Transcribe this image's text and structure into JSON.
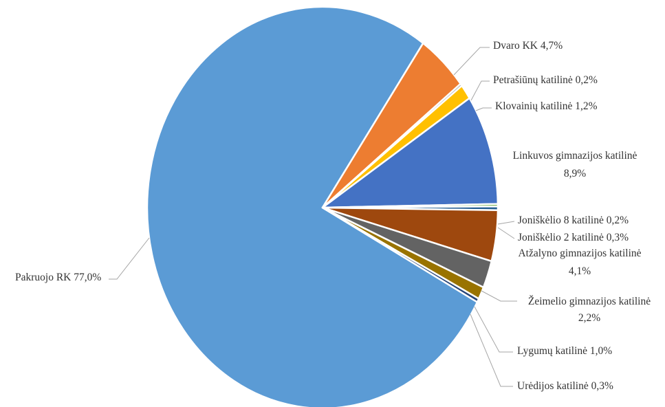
{
  "chart_data": {
    "type": "pie",
    "title": "",
    "label_format": "{name} {value}%",
    "decimal_separator": ",",
    "slices": [
      {
        "name": "Pakruojo RK",
        "value": 77.0,
        "color": "#5b9bd5"
      },
      {
        "name": "Dvaro KK",
        "value": 4.7,
        "color": "#ed7d31"
      },
      {
        "name": "Petrašiūnų katilinė",
        "value": 0.2,
        "color": "#a5a5a5"
      },
      {
        "name": "Klovainių katilinė",
        "value": 1.2,
        "color": "#ffc000"
      },
      {
        "name": "Linkuvos gimnazijos katilinė",
        "value": 8.9,
        "color": "#4472c4"
      },
      {
        "name": "Joniškėlio 8 katilinė",
        "value": 0.2,
        "color": "#70ad47"
      },
      {
        "name": "Joniškėlio 2 katilinė",
        "value": 0.3,
        "color": "#255e91"
      },
      {
        "name": "Atžalyno gimnazijos katilinė",
        "value": 4.1,
        "color": "#9e480e"
      },
      {
        "name": "Žeimelio gimnazijos katilinė",
        "value": 2.2,
        "color": "#636363"
      },
      {
        "name": "Lygumų katilinė",
        "value": 1.0,
        "color": "#997300"
      },
      {
        "name": "Urėdijos katilinė",
        "value": 0.3,
        "color": "#264478"
      }
    ]
  }
}
